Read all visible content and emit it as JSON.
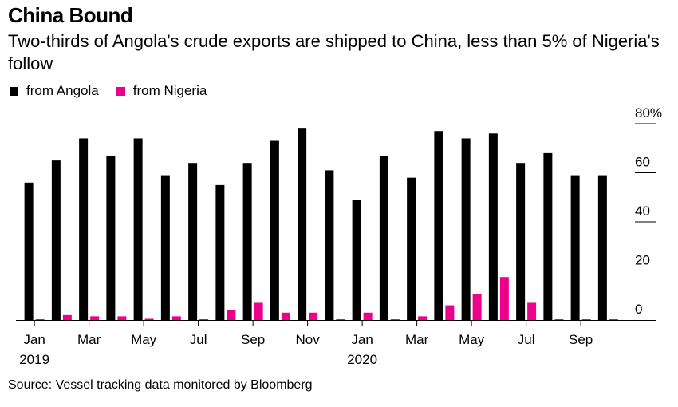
{
  "title": "China Bound",
  "subtitle": "Two-thirds of Angola's crude exports are shipped to China, less than 5% of Nigeria's follow",
  "source": "Source: Vessel tracking data monitored by Bloomberg",
  "colors": {
    "angola": "#000000",
    "nigeria": "#ec008c",
    "axis": "#000000",
    "grid": "#000000"
  },
  "chart_data": {
    "type": "bar",
    "categories": [
      "Jan 2019",
      "Feb 2019",
      "Mar 2019",
      "Apr 2019",
      "May 2019",
      "Jun 2019",
      "Jul 2019",
      "Aug 2019",
      "Sep 2019",
      "Oct 2019",
      "Nov 2019",
      "Dec 2019",
      "Jan 2020",
      "Feb 2020",
      "Mar 2020",
      "Apr 2020",
      "May 2020",
      "Jun 2020",
      "Jul 2020",
      "Aug 2020",
      "Sep 2020",
      "Oct 2020"
    ],
    "series": [
      {
        "name": "from Angola",
        "values": [
          56,
          65,
          74,
          67,
          74,
          59,
          64,
          55,
          64,
          73,
          78,
          61,
          49,
          67,
          58,
          77,
          74,
          76,
          64,
          68,
          59,
          59
        ]
      },
      {
        "name": "from Nigeria",
        "values": [
          0,
          2,
          1.5,
          1.5,
          0.5,
          1.5,
          0,
          4,
          7,
          3,
          3,
          0,
          3,
          0,
          1.5,
          6,
          10.5,
          17.5,
          7,
          0,
          0,
          0
        ]
      }
    ],
    "x_tick_labels": [
      {
        "index": 0,
        "month": "Jan",
        "year": "2019"
      },
      {
        "index": 2,
        "month": "Mar",
        "year": ""
      },
      {
        "index": 4,
        "month": "May",
        "year": ""
      },
      {
        "index": 6,
        "month": "Jul",
        "year": ""
      },
      {
        "index": 8,
        "month": "Sep",
        "year": ""
      },
      {
        "index": 10,
        "month": "Nov",
        "year": ""
      },
      {
        "index": 12,
        "month": "Jan",
        "year": "2020"
      },
      {
        "index": 14,
        "month": "Mar",
        "year": ""
      },
      {
        "index": 16,
        "month": "May",
        "year": ""
      },
      {
        "index": 18,
        "month": "Jul",
        "year": ""
      },
      {
        "index": 20,
        "month": "Sep",
        "year": ""
      }
    ],
    "y_ticks": [
      {
        "value": 0,
        "label": "0"
      },
      {
        "value": 20,
        "label": "20"
      },
      {
        "value": 40,
        "label": "40"
      },
      {
        "value": 60,
        "label": "60"
      },
      {
        "value": 80,
        "label": "80%"
      }
    ],
    "ylim": [
      0,
      80
    ],
    "legend_position": "top-left",
    "grid": false
  }
}
